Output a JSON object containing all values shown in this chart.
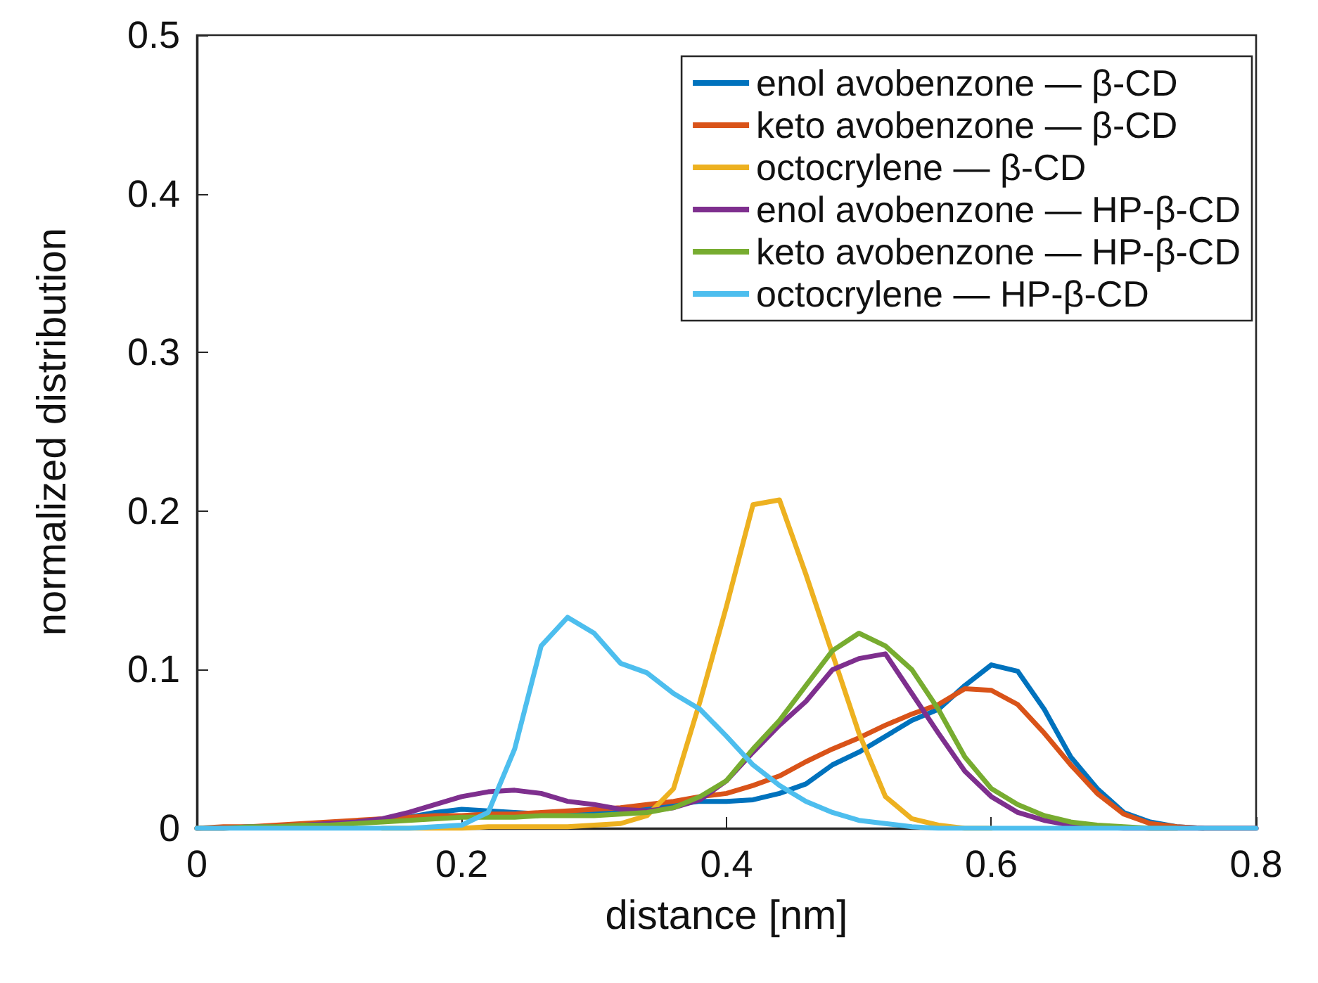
{
  "chart_data": {
    "type": "line",
    "xlabel": "distance [nm]",
    "ylabel": "normalized distribution",
    "x": [
      0,
      0.02,
      0.04,
      0.06,
      0.08,
      0.1,
      0.12,
      0.14,
      0.16,
      0.18,
      0.2,
      0.22,
      0.24,
      0.26,
      0.28,
      0.3,
      0.32,
      0.34,
      0.36,
      0.38,
      0.4,
      0.42,
      0.44,
      0.46,
      0.48,
      0.5,
      0.52,
      0.54,
      0.56,
      0.58,
      0.6,
      0.62,
      0.64,
      0.66,
      0.68,
      0.7,
      0.72,
      0.74,
      0.76,
      0.78,
      0.8
    ],
    "series": [
      {
        "name": "enol avobenzone — β-CD",
        "color": "#0072bd",
        "values": [
          null,
          null,
          null,
          null,
          null,
          null,
          null,
          0.005,
          0.007,
          0.01,
          0.012,
          0.011,
          0.01,
          0.009,
          0.009,
          0.01,
          0.011,
          0.013,
          0.015,
          0.017,
          0.017,
          0.018,
          0.022,
          0.028,
          0.04,
          0.048,
          0.058,
          0.068,
          0.075,
          0.09,
          0.103,
          0.099,
          0.075,
          0.045,
          0.025,
          0.01,
          0.004,
          0.001,
          0,
          null,
          null
        ]
      },
      {
        "name": "keto avobenzone — β-CD",
        "color": "#d95319",
        "values": [
          0,
          0.001,
          0.001,
          0.002,
          0.003,
          0.004,
          0.005,
          0.006,
          0.007,
          0.008,
          0.008,
          0.009,
          0.009,
          0.01,
          0.011,
          0.012,
          0.013,
          0.015,
          0.017,
          0.02,
          0.022,
          0.027,
          0.033,
          0.042,
          0.05,
          0.057,
          0.065,
          0.072,
          0.078,
          0.088,
          0.087,
          0.078,
          0.06,
          0.04,
          0.022,
          0.009,
          0.003,
          0.001,
          0,
          0,
          0
        ]
      },
      {
        "name": "octocrylene — β-CD",
        "color": "#edb120",
        "values": [
          null,
          null,
          null,
          null,
          null,
          null,
          null,
          0,
          0,
          0,
          0,
          0.001,
          0.001,
          0.001,
          0.001,
          0.002,
          0.003,
          0.008,
          0.025,
          0.08,
          0.14,
          0.204,
          0.207,
          0.16,
          0.11,
          0.06,
          0.02,
          0.006,
          0.002,
          0,
          0,
          null,
          null,
          null,
          null,
          null,
          null,
          null,
          null,
          null,
          null
        ]
      },
      {
        "name": "enol avobenzone — HP-β-CD",
        "color": "#7e2f8e",
        "values": [
          0,
          0,
          0.001,
          0.001,
          0.002,
          0.003,
          0.004,
          0.006,
          0.01,
          0.015,
          0.02,
          0.023,
          0.024,
          0.022,
          0.017,
          0.015,
          0.012,
          0.011,
          0.013,
          0.018,
          0.03,
          0.048,
          0.065,
          0.08,
          0.1,
          0.107,
          0.11,
          0.085,
          0.06,
          0.036,
          0.02,
          0.01,
          0.005,
          0.002,
          0.001,
          0,
          0,
          0,
          0,
          0,
          0
        ]
      },
      {
        "name": "keto avobenzone — HP-β-CD",
        "color": "#77ac30",
        "values": [
          0,
          0,
          0.001,
          0.001,
          0.002,
          0.002,
          0.003,
          0.004,
          0.005,
          0.006,
          0.007,
          0.007,
          0.007,
          0.008,
          0.008,
          0.008,
          0.009,
          0.01,
          0.013,
          0.02,
          0.03,
          0.05,
          0.068,
          0.09,
          0.112,
          0.123,
          0.115,
          0.1,
          0.075,
          0.045,
          0.025,
          0.015,
          0.008,
          0.004,
          0.002,
          0.001,
          0,
          0,
          null,
          null,
          null
        ]
      },
      {
        "name": "octocrylene — HP-β-CD",
        "color": "#4dbeee",
        "values": [
          0,
          0,
          0,
          0,
          0,
          0,
          0,
          0,
          0,
          0.001,
          0.002,
          0.01,
          0.05,
          0.115,
          0.133,
          0.123,
          0.104,
          0.098,
          0.085,
          0.075,
          0.058,
          0.04,
          0.027,
          0.017,
          0.01,
          0.005,
          0.003,
          0.001,
          0,
          0,
          0,
          0,
          0,
          0,
          0,
          0,
          0,
          0,
          0,
          0,
          0
        ]
      }
    ],
    "xlim": [
      0,
      0.8
    ],
    "xticks": [
      0,
      0.2,
      0.4,
      0.6,
      0.8
    ],
    "ylim": [
      0,
      0.5
    ],
    "yticks": [
      0,
      0.1,
      0.2,
      0.3,
      0.4,
      0.5
    ],
    "grid": false,
    "legend": "top right",
    "marker": "none",
    "line_style": "solid"
  }
}
